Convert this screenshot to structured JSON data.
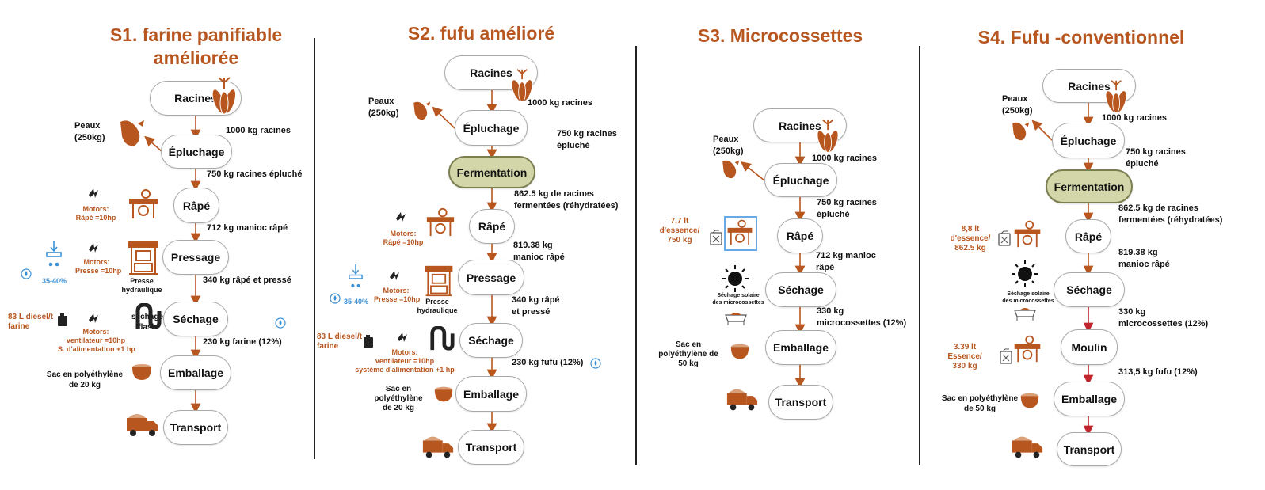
{
  "columns": [
    {
      "title": "S1. farine panifiable améliorée",
      "steps": [
        "Racines",
        "Épluchage",
        "Râpé",
        "Pressage",
        "Séchage",
        "Emballage",
        "Transport"
      ],
      "quantities": [
        "1000 kg racines",
        "750 kg racines épluché",
        "712 kg manioc râpé",
        "340 kg râpé et pressé",
        "230 kg farine (12%)"
      ],
      "peaux": "Peaux\n(250kg)",
      "motors_rape": "Motors:\nRâpé =10hp",
      "motors_presse": "Motors:\nPresse =10hp",
      "presse_label": "Presse\nhydraulique",
      "water_pct": "35-40%",
      "diesel": "83 L diesel/t\nfarine",
      "motors_sechage": "Motors:\nventilateur =10hp\nS. d'alimentation +1 hp",
      "sechage_label": "séchage\nflash",
      "sac": "Sac en polyéthylène\nde 20 kg"
    },
    {
      "title": "S2. fufu amélioré",
      "steps": [
        "Racines",
        "Épluchage",
        "Fermentation",
        "Râpé",
        "Pressage",
        "Séchage",
        "Emballage",
        "Transport"
      ],
      "quantities": [
        "1000 kg racines",
        "750 kg racines\népluché",
        "862.5 kg de racines\nfermentées (réhydratées)",
        "819.38 kg\nmanioc râpé",
        "340 kg râpé\net pressé",
        "230 kg fufu (12%)"
      ],
      "peaux": "Peaux\n(250kg)",
      "motors_rape": "Motors:\nRâpé =10hp",
      "motors_presse": "Motors:\nPresse =10hp",
      "presse_label": "Presse\nhydraulique",
      "water_pct": "35-40%",
      "diesel": "83 L diesel/t\nfarine",
      "motors_sechage": "Motors:\nventilateur =10hp\nsystème d'alimentation +1 hp",
      "sac": "Sac en\npolyéthylène\nde 20 kg"
    },
    {
      "title": "S3. Microcossettes",
      "steps": [
        "Racines",
        "Épluchage",
        "Râpé",
        "Séchage",
        "Emballage",
        "Transport"
      ],
      "quantities": [
        "1000 kg racines",
        "750 kg racines\népluché",
        "712 kg manioc\nrâpé",
        "330 kg\nmicrocossettes (12%)"
      ],
      "peaux": "Peaux\n(250kg)",
      "essence": "7,7 lt\nd'essence/\n750 kg",
      "sechage_solaire": "Séchage solaire\ndes microcossettes",
      "sac": "Sac en\npolyéthylène de\n50 kg"
    },
    {
      "title": "S4. Fufu -conventionnel",
      "steps": [
        "Racines",
        "Épluchage",
        "Fermentation",
        "Râpé",
        "Séchage",
        "Moulin",
        "Emballage",
        "Transport"
      ],
      "quantities": [
        "1000 kg racines",
        "750 kg racines\népluché",
        "862.5 kg de racines\nfermentées (réhydratées)",
        "819.38 kg\nmanioc râpé",
        "330 kg\nmicrocossettes (12%)",
        "313,5 kg fufu (12%)"
      ],
      "peaux": "Peaux\n(250kg)",
      "essence_rape": "8,8 lt\nd'essence/\n862.5 kg",
      "sechage_solaire": "Séchage solaire\ndes microcossettes",
      "essence_moulin": "3.39 lt\nEssence/\n330 kg",
      "sac": "Sac en polyéthylène\nde 50 kg"
    }
  ],
  "colors": {
    "title": "#b8561f",
    "arrow": "#b8561f",
    "arrow_red": "#c0262c",
    "fermentation": "#d3d6a9",
    "water": "#3a8fd3"
  }
}
